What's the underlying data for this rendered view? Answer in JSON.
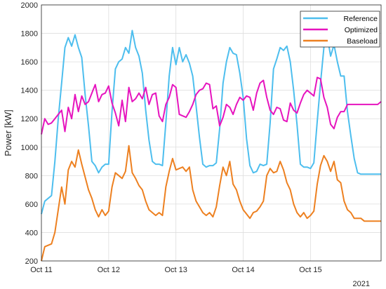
{
  "chart_data": {
    "type": "line",
    "ylabel": "Power [kW]",
    "ylim": [
      200,
      2000
    ],
    "yticks": [
      200,
      400,
      600,
      800,
      1000,
      1200,
      1400,
      1600,
      1800,
      2000
    ],
    "xlim": [
      0,
      5.05
    ],
    "xticks": [
      {
        "x": 0,
        "label": "Oct 11"
      },
      {
        "x": 1,
        "label": "Oct 12"
      },
      {
        "x": 2,
        "label": "Oct 13"
      },
      {
        "x": 3,
        "label": "Oct 14"
      },
      {
        "x": 4,
        "label": "Oct 15"
      }
    ],
    "year_label": "2021",
    "grid": true,
    "legend_position": "top-right",
    "x": [
      0,
      0.05,
      0.1,
      0.15,
      0.2,
      0.25,
      0.3,
      0.35,
      0.4,
      0.45,
      0.5,
      0.55,
      0.6,
      0.65,
      0.7,
      0.75,
      0.8,
      0.85,
      0.9,
      0.95,
      1,
      1.05,
      1.1,
      1.15,
      1.2,
      1.25,
      1.3,
      1.35,
      1.4,
      1.45,
      1.5,
      1.55,
      1.6,
      1.65,
      1.7,
      1.75,
      1.8,
      1.85,
      1.9,
      1.95,
      2,
      2.05,
      2.1,
      2.15,
      2.2,
      2.25,
      2.3,
      2.35,
      2.4,
      2.45,
      2.5,
      2.55,
      2.6,
      2.65,
      2.7,
      2.75,
      2.8,
      2.85,
      2.9,
      2.95,
      3,
      3.05,
      3.1,
      3.15,
      3.2,
      3.25,
      3.3,
      3.35,
      3.4,
      3.45,
      3.5,
      3.55,
      3.6,
      3.65,
      3.7,
      3.75,
      3.8,
      3.85,
      3.9,
      3.95,
      4,
      4.05,
      4.1,
      4.15,
      4.2,
      4.25,
      4.3,
      4.35,
      4.4,
      4.45,
      4.5,
      4.55,
      4.6,
      4.65,
      4.7,
      4.75,
      4.8,
      4.85,
      4.9,
      4.95,
      5,
      5.05
    ],
    "series": [
      {
        "name": "Reference",
        "color": "#4DBEEE",
        "values": [
          530,
          620,
          640,
          660,
          900,
          1200,
          1450,
          1700,
          1770,
          1710,
          1790,
          1700,
          1630,
          1370,
          1150,
          900,
          870,
          820,
          860,
          880,
          880,
          1250,
          1550,
          1600,
          1620,
          1700,
          1660,
          1820,
          1700,
          1640,
          1520,
          1260,
          1050,
          900,
          880,
          880,
          870,
          1170,
          1500,
          1700,
          1580,
          1700,
          1600,
          1650,
          1590,
          1500,
          1290,
          1070,
          880,
          860,
          870,
          870,
          890,
          1130,
          1450,
          1600,
          1700,
          1660,
          1650,
          1520,
          1350,
          1060,
          870,
          820,
          830,
          880,
          870,
          880,
          1170,
          1550,
          1620,
          1700,
          1680,
          1710,
          1600,
          1400,
          1160,
          880,
          860,
          860,
          850,
          890,
          1180,
          1450,
          1700,
          1780,
          1640,
          1720,
          1600,
          1500,
          1500,
          1250,
          1080,
          920,
          820,
          810,
          810,
          810,
          810,
          810,
          810,
          810
        ]
      },
      {
        "name": "Optimized",
        "color": "#E614BE",
        "values": [
          1090,
          1200,
          1160,
          1170,
          1200,
          1230,
          1260,
          1110,
          1280,
          1200,
          1370,
          1250,
          1360,
          1300,
          1320,
          1380,
          1440,
          1320,
          1370,
          1380,
          1430,
          1310,
          1240,
          1150,
          1330,
          1180,
          1420,
          1320,
          1340,
          1380,
          1340,
          1420,
          1300,
          1370,
          1380,
          1220,
          1180,
          1300,
          1350,
          1440,
          1420,
          1230,
          1220,
          1210,
          1250,
          1300,
          1370,
          1400,
          1410,
          1450,
          1440,
          1270,
          1290,
          1150,
          1210,
          1300,
          1280,
          1230,
          1300,
          1350,
          1330,
          1360,
          1350,
          1260,
          1380,
          1450,
          1470,
          1350,
          1260,
          1230,
          1280,
          1270,
          1190,
          1180,
          1310,
          1260,
          1240,
          1310,
          1370,
          1400,
          1380,
          1360,
          1490,
          1480,
          1350,
          1280,
          1160,
          1130,
          1210,
          1250,
          1250,
          1300,
          1300,
          1300,
          1300,
          1300,
          1300,
          1300,
          1300,
          1300,
          1300,
          1320
        ]
      },
      {
        "name": "Baseload",
        "color": "#ED8020",
        "values": [
          200,
          300,
          310,
          320,
          400,
          560,
          720,
          600,
          840,
          900,
          860,
          980,
          880,
          790,
          700,
          640,
          560,
          510,
          560,
          520,
          550,
          720,
          820,
          800,
          780,
          830,
          1010,
          820,
          780,
          730,
          700,
          620,
          560,
          540,
          520,
          540,
          520,
          720,
          830,
          920,
          840,
          850,
          860,
          830,
          860,
          700,
          620,
          580,
          540,
          520,
          540,
          510,
          580,
          730,
          860,
          800,
          900,
          740,
          700,
          620,
          560,
          530,
          500,
          540,
          550,
          580,
          620,
          800,
          850,
          820,
          830,
          900,
          840,
          750,
          700,
          600,
          540,
          510,
          540,
          500,
          520,
          550,
          740,
          870,
          940,
          900,
          830,
          900,
          770,
          750,
          620,
          560,
          540,
          500,
          500,
          500,
          480,
          480,
          480,
          480,
          480,
          480
        ]
      }
    ]
  }
}
